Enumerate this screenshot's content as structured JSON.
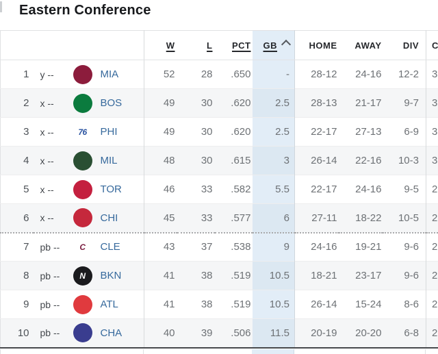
{
  "title": "Eastern Conference",
  "colors": {
    "team_link": "#36699c",
    "gb_highlight": "#e5eef7",
    "alt_row": "#f5f6f7",
    "bottom_border": "#47494c",
    "header_text": "#26282c",
    "value_text": "#6d7175"
  },
  "table": {
    "sort_icon": "chevron-up-icon",
    "sorted_column": "GB",
    "sort_direction": "asc",
    "playoff_divider_index": 6,
    "columns": [
      {
        "label": "W",
        "sortable": true
      },
      {
        "label": "L",
        "sortable": true
      },
      {
        "label": "PCT",
        "sortable": true
      },
      {
        "label": "GB",
        "sortable": true,
        "sorted": true
      },
      {
        "label": "HOME",
        "sortable": false
      },
      {
        "label": "AWAY",
        "sortable": false
      },
      {
        "label": "DIV",
        "sortable": false
      },
      {
        "label": "C",
        "sortable": false,
        "clipped": true
      }
    ],
    "rows": [
      {
        "rank": "1",
        "clinch": "y --",
        "team": "MIA",
        "w": "52",
        "l": "28",
        "pct": ".650",
        "gb": "-",
        "home": "28-12",
        "away": "24-16",
        "div": "12-2",
        "conf": "3",
        "logo": {
          "bg": "#8c1c3c",
          "fg": "#ffffff",
          "text": ""
        }
      },
      {
        "rank": "2",
        "clinch": "x --",
        "team": "BOS",
        "w": "49",
        "l": "30",
        "pct": ".620",
        "gb": "2.5",
        "home": "28-13",
        "away": "21-17",
        "div": "9-7",
        "conf": "3",
        "logo": {
          "bg": "#0b7b3e",
          "fg": "#ffffff",
          "text": ""
        }
      },
      {
        "rank": "3",
        "clinch": "x --",
        "team": "PHI",
        "w": "49",
        "l": "30",
        "pct": ".620",
        "gb": "2.5",
        "home": "22-17",
        "away": "27-13",
        "div": "6-9",
        "conf": "3",
        "logo": {
          "bg": "transparent",
          "fg": "#2a53a0",
          "text": "76"
        }
      },
      {
        "rank": "4",
        "clinch": "x --",
        "team": "MIL",
        "w": "48",
        "l": "30",
        "pct": ".615",
        "gb": "3",
        "home": "26-14",
        "away": "22-16",
        "div": "10-3",
        "conf": "3",
        "logo": {
          "bg": "#2a4f33",
          "fg": "#ffffff",
          "text": ""
        }
      },
      {
        "rank": "5",
        "clinch": "x --",
        "team": "TOR",
        "w": "46",
        "l": "33",
        "pct": ".582",
        "gb": "5.5",
        "home": "22-17",
        "away": "24-16",
        "div": "9-5",
        "conf": "2",
        "logo": {
          "bg": "#c4203f",
          "fg": "#ffffff",
          "text": ""
        }
      },
      {
        "rank": "6",
        "clinch": "x --",
        "team": "CHI",
        "w": "45",
        "l": "33",
        "pct": ".577",
        "gb": "6",
        "home": "27-11",
        "away": "18-22",
        "div": "10-5",
        "conf": "2",
        "logo": {
          "bg": "#c5283c",
          "fg": "#ffffff",
          "text": ""
        }
      },
      {
        "rank": "7",
        "clinch": "pb --",
        "team": "CLE",
        "w": "43",
        "l": "37",
        "pct": ".538",
        "gb": "9",
        "home": "24-16",
        "away": "19-21",
        "div": "9-6",
        "conf": "2",
        "logo": {
          "bg": "transparent",
          "fg": "#7c2142",
          "text": "C"
        }
      },
      {
        "rank": "8",
        "clinch": "pb --",
        "team": "BKN",
        "w": "41",
        "l": "38",
        "pct": ".519",
        "gb": "10.5",
        "home": "18-21",
        "away": "23-17",
        "div": "9-6",
        "conf": "2",
        "logo": {
          "bg": "#1b1b1e",
          "fg": "#ffffff",
          "text": "N"
        }
      },
      {
        "rank": "9",
        "clinch": "pb --",
        "team": "ATL",
        "w": "41",
        "l": "38",
        "pct": ".519",
        "gb": "10.5",
        "home": "26-14",
        "away": "15-24",
        "div": "8-6",
        "conf": "2",
        "logo": {
          "bg": "#e03a3e",
          "fg": "#ffffff",
          "text": ""
        }
      },
      {
        "rank": "10",
        "clinch": "pb --",
        "team": "CHA",
        "w": "40",
        "l": "39",
        "pct": ".506",
        "gb": "11.5",
        "home": "20-19",
        "away": "20-20",
        "div": "6-8",
        "conf": "2",
        "logo": {
          "bg": "#3a3d8f",
          "fg": "#ffffff",
          "text": ""
        }
      }
    ]
  }
}
